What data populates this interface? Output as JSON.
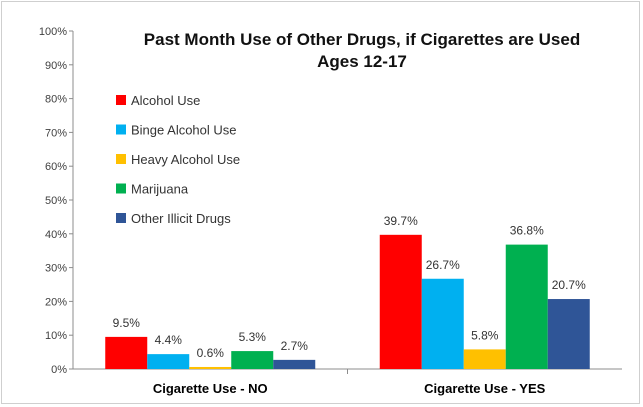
{
  "chart_data": {
    "type": "bar",
    "title": "Past Month Use of Other Drugs, if Cigarettes are Used",
    "subtitle": "Ages 12-17",
    "xlabel": "",
    "ylabel": "",
    "categories": [
      "Cigarette Use - NO",
      "Cigarette Use - YES"
    ],
    "ylim": [
      0,
      100
    ],
    "yticks": [
      "0%",
      "10%",
      "20%",
      "30%",
      "40%",
      "50%",
      "60%",
      "70%",
      "80%",
      "90%",
      "100%"
    ],
    "grid": false,
    "legend_position": "top-left",
    "series": [
      {
        "name": "Alcohol Use",
        "color": "#ff0000",
        "values": [
          9.5,
          39.7
        ],
        "labels": [
          "9.5%",
          "39.7%"
        ]
      },
      {
        "name": "Binge Alcohol Use",
        "color": "#00b0f0",
        "values": [
          4.4,
          26.7
        ],
        "labels": [
          "4.4%",
          "26.7%"
        ]
      },
      {
        "name": "Heavy Alcohol Use",
        "color": "#ffc000",
        "values": [
          0.6,
          5.8
        ],
        "labels": [
          "0.6%",
          "5.8%"
        ]
      },
      {
        "name": "Marijuana",
        "color": "#00b050",
        "values": [
          5.3,
          36.8
        ],
        "labels": [
          "5.3%",
          "36.8%"
        ]
      },
      {
        "name": "Other Illicit Drugs",
        "color": "#2f5597",
        "values": [
          2.7,
          20.7
        ],
        "labels": [
          "2.7%",
          "20.7%"
        ]
      }
    ]
  }
}
